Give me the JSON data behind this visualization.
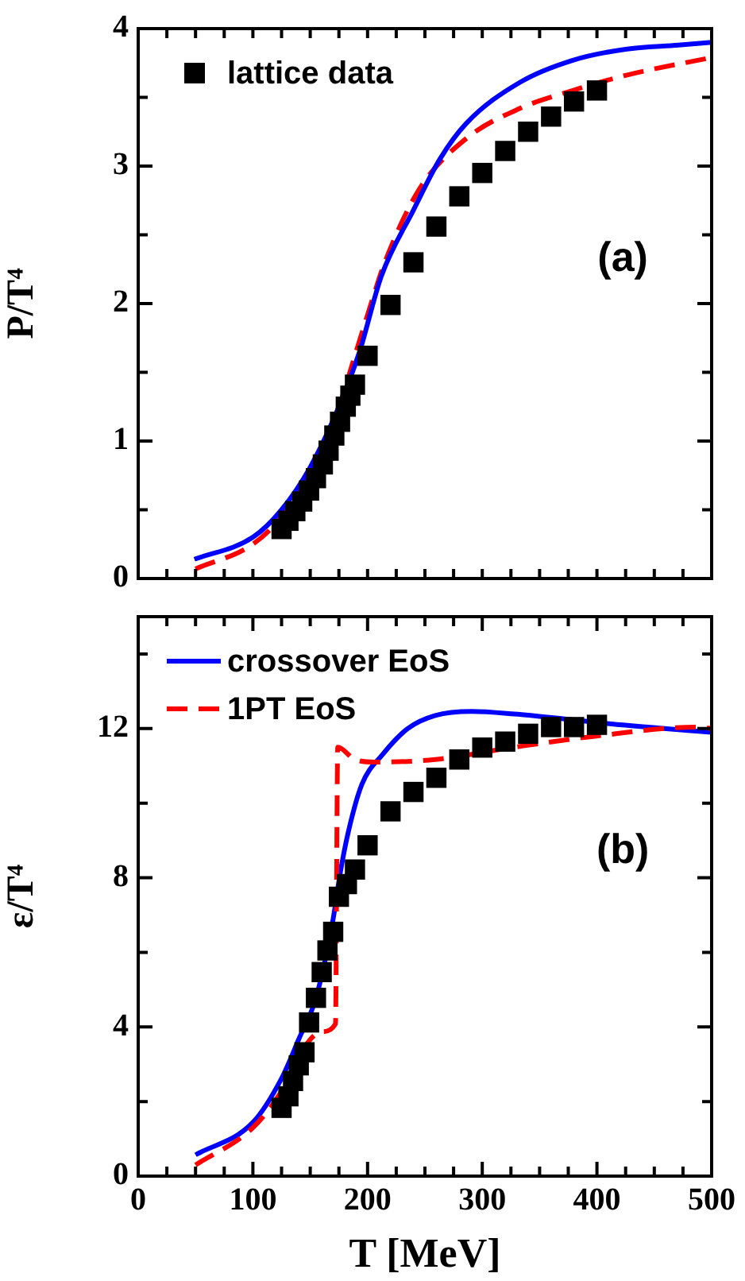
{
  "chart_data": [
    {
      "type": "line",
      "ylabel": "P/T⁴",
      "annotations": [
        "(a)"
      ],
      "legend": "top left",
      "tick_labels": "y",
      "xlim": [
        0,
        500
      ],
      "xticks": [
        0,
        {
          "value": 25,
          "label": null
        },
        {
          "value": 50,
          "label": null
        },
        {
          "value": 75,
          "label": null
        },
        {
          "value": 100,
          "label": null
        },
        {
          "value": 125,
          "label": null
        },
        {
          "value": 150,
          "label": null
        },
        {
          "value": 175,
          "label": null
        },
        {
          "value": 200,
          "label": null
        },
        {
          "value": 225,
          "label": null
        },
        {
          "value": 250,
          "label": null
        },
        {
          "value": 275,
          "label": null
        },
        {
          "value": 300,
          "label": null
        },
        {
          "value": 325,
          "label": null
        },
        {
          "value": 350,
          "label": null
        },
        {
          "value": 375,
          "label": null
        },
        {
          "value": 400,
          "label": null
        },
        {
          "value": 425,
          "label": null
        },
        {
          "value": 450,
          "label": null
        },
        {
          "value": 475,
          "label": null
        },
        {
          "value": 500,
          "label": null
        }
      ],
      "ylim": [
        0,
        4
      ],
      "yticks": [
        0,
        {
          "value": 0.5,
          "label": null
        },
        1,
        {
          "value": 1.5,
          "label": null
        },
        2,
        {
          "value": 2.5,
          "label": null
        },
        3,
        {
          "value": 3.5,
          "label": null
        },
        4
      ],
      "series": [
        {
          "type": "line",
          "line_style": "dashed",
          "color": "#ff0000",
          "x": [
            50,
            100,
            125,
            150,
            175,
            190,
            205,
            215,
            245,
            286,
            333,
            379,
            425,
            500
          ],
          "values": [
            0.07,
            0.25,
            0.45,
            0.78,
            1.25,
            1.65,
            2.05,
            2.3,
            2.83,
            3.2,
            3.42,
            3.55,
            3.66,
            3.79
          ]
        },
        {
          "type": "line",
          "line_style": "solid",
          "color": "#0000ff",
          "x": [
            49,
            100,
            125,
            150,
            175,
            193,
            212,
            240,
            263,
            286,
            333,
            379,
            425,
            471,
            500
          ],
          "values": [
            0.14,
            0.3,
            0.5,
            0.81,
            1.25,
            1.65,
            2.2,
            2.68,
            3.05,
            3.31,
            3.61,
            3.77,
            3.85,
            3.88,
            3.9
          ]
        },
        {
          "name": "lattice data",
          "type": "scatter",
          "marker": "square",
          "color": "#000000",
          "x": [
            125,
            131,
            137,
            143,
            149,
            155,
            161,
            166,
            171,
            176,
            181,
            185,
            189,
            200,
            220,
            240,
            260,
            280,
            300,
            320,
            340,
            360,
            380,
            400
          ],
          "values": [
            0.36,
            0.42,
            0.49,
            0.56,
            0.64,
            0.73,
            0.83,
            0.93,
            1.04,
            1.14,
            1.25,
            1.33,
            1.41,
            1.62,
            1.99,
            2.3,
            2.56,
            2.78,
            2.95,
            3.11,
            3.25,
            3.36,
            3.47,
            3.55
          ]
        }
      ]
    },
    {
      "type": "line",
      "xlabel": "T [MeV]",
      "ylabel": "ε/T⁴",
      "annotations": [
        "(b)"
      ],
      "legend": "top left",
      "xlim": [
        0,
        500
      ],
      "xticks": [
        0,
        {
          "value": 25,
          "label": null
        },
        {
          "value": 50,
          "label": null
        },
        {
          "value": 75,
          "label": null
        },
        100,
        {
          "value": 125,
          "label": null
        },
        {
          "value": 150,
          "label": null
        },
        {
          "value": 175,
          "label": null
        },
        200,
        {
          "value": 225,
          "label": null
        },
        {
          "value": 250,
          "label": null
        },
        {
          "value": 275,
          "label": null
        },
        300,
        {
          "value": 325,
          "label": null
        },
        {
          "value": 350,
          "label": null
        },
        {
          "value": 375,
          "label": null
        },
        400,
        {
          "value": 425,
          "label": null
        },
        {
          "value": 450,
          "label": null
        },
        {
          "value": 475,
          "label": null
        },
        500
      ],
      "ylim": [
        0,
        15
      ],
      "yticks": [
        0,
        {
          "value": 2,
          "label": null
        },
        4,
        {
          "value": 6,
          "label": null
        },
        8,
        {
          "value": 10,
          "label": null
        },
        12,
        {
          "value": 14,
          "label": null
        }
      ],
      "series": [
        {
          "name": "crossover EoS",
          "type": "line",
          "line_style": "solid",
          "color": "#0000ff",
          "x": [
            50,
            100,
            125,
            140,
            155,
            170,
            176,
            183,
            195,
            213,
            235,
            259,
            291,
            328,
            374,
            420,
            500
          ],
          "values": [
            0.57,
            1.44,
            2.62,
            3.67,
            4.78,
            6.9,
            8.1,
            9.2,
            10.5,
            11.3,
            12.0,
            12.35,
            12.46,
            12.39,
            12.25,
            12.1,
            11.9
          ]
        },
        {
          "name": "1PT EoS",
          "type": "line",
          "line_style": "dashed",
          "color": "#ff0000",
          "x": [
            50,
            100,
            125,
            145,
            160,
            172,
            174,
            189,
            207,
            259,
            328,
            397,
            488,
            500
          ],
          "values": [
            0.3,
            1.3,
            2.28,
            3.46,
            3.87,
            4.08,
            11.5,
            11.17,
            11.1,
            11.17,
            11.5,
            11.79,
            12.04,
            12.0
          ]
        },
        {
          "type": "scatter",
          "marker": "square",
          "color": "#000000",
          "x": [
            125,
            131,
            135,
            140,
            145,
            149,
            155,
            160,
            165,
            170,
            175,
            182,
            189,
            200,
            220,
            240,
            260,
            280,
            300,
            320,
            340,
            360,
            380,
            400
          ],
          "values": [
            1.83,
            2.14,
            2.55,
            2.97,
            3.32,
            4.12,
            4.78,
            5.47,
            6.05,
            6.55,
            7.49,
            7.83,
            8.22,
            8.87,
            9.78,
            10.3,
            10.68,
            11.17,
            11.49,
            11.65,
            11.86,
            12.04,
            12.04,
            12.1
          ]
        }
      ]
    }
  ]
}
